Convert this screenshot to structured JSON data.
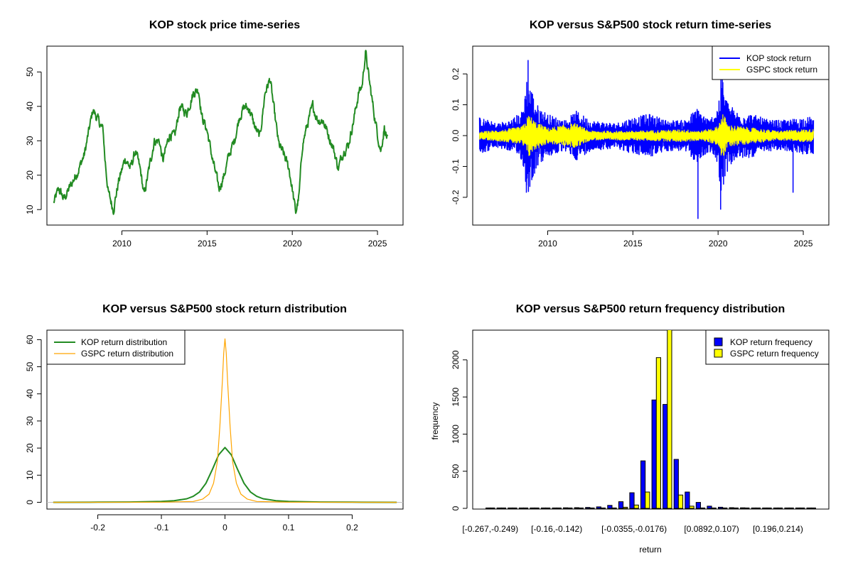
{
  "chart_data": [
    {
      "id": "price",
      "type": "line",
      "title": "KOP stock price time-series",
      "xlabel": "",
      "ylabel": "",
      "xlim": [
        2005.6,
        2026.5
      ],
      "ylim": [
        5.5,
        57.5
      ],
      "x_ticks": [
        2010,
        2015,
        2020,
        2025
      ],
      "y_ticks": [
        10,
        20,
        30,
        40,
        50
      ],
      "series": [
        {
          "color": "#228B22",
          "x": [
            2006.0,
            2006.3,
            2006.6,
            2007.0,
            2007.4,
            2007.8,
            2008.3,
            2008.6,
            2008.9,
            2009.0,
            2009.2,
            2009.5,
            2009.8,
            2010.2,
            2010.5,
            2010.8,
            2011.1,
            2011.3,
            2011.6,
            2011.9,
            2012.2,
            2012.4,
            2012.8,
            2013.1,
            2013.4,
            2013.8,
            2014.2,
            2014.5,
            2014.7,
            2015.0,
            2015.3,
            2015.7,
            2016.0,
            2016.3,
            2016.6,
            2016.9,
            2017.2,
            2017.5,
            2017.8,
            2018.1,
            2018.4,
            2018.7,
            2018.9,
            2019.2,
            2019.5,
            2019.8,
            2020.0,
            2020.2,
            2020.4,
            2020.6,
            2020.9,
            2021.2,
            2021.5,
            2021.8,
            2022.1,
            2022.4,
            2022.7,
            2023.0,
            2023.3,
            2023.6,
            2023.9,
            2024.1,
            2024.3,
            2024.5,
            2024.8,
            2025.0,
            2025.2,
            2025.4,
            2025.6
          ],
          "y": [
            12,
            16,
            13,
            17,
            21,
            26,
            39,
            36,
            33,
            25,
            15,
            10,
            18,
            25,
            22,
            27,
            21,
            14,
            22,
            30,
            30,
            24,
            32,
            31,
            40,
            38,
            44,
            45,
            37,
            33,
            25,
            16,
            20,
            26,
            30,
            37,
            40,
            39,
            34,
            31,
            44,
            48,
            40,
            29,
            26,
            22,
            16,
            9,
            14,
            29,
            35,
            40,
            36,
            36,
            32,
            28,
            22,
            27,
            29,
            36,
            44,
            46,
            56,
            48,
            38,
            32,
            27,
            34,
            30
          ]
        }
      ]
    },
    {
      "id": "returns",
      "type": "line",
      "title": "KOP versus S&P500 stock return time-series",
      "xlabel": "",
      "ylabel": "",
      "xlim": [
        2005.6,
        2026.5
      ],
      "ylim": [
        -0.29,
        0.29
      ],
      "x_ticks": [
        2010,
        2015,
        2020,
        2025
      ],
      "y_ticks": [
        -0.2,
        -0.1,
        0.0,
        0.1,
        0.2
      ],
      "y_tick_labels": [
        "-0.2",
        "-0.1",
        "0.0",
        "0.1",
        "0.2"
      ],
      "legend": {
        "position": "top-right",
        "entries": [
          "KOP stock return",
          "GSPC stock return"
        ]
      },
      "series": [
        {
          "name": "KOP stock return",
          "color": "#0000FF",
          "x_start": 2006.0,
          "x_end": 2025.6,
          "envelope_x": [
            2006.0,
            2007.0,
            2007.8,
            2008.5,
            2008.8,
            2009.0,
            2009.4,
            2010.0,
            2011.0,
            2011.7,
            2012.5,
            2014.0,
            2015.0,
            2016.0,
            2017.0,
            2018.0,
            2018.8,
            2019.5,
            2020.0,
            2020.2,
            2020.5,
            2021.0,
            2022.0,
            2023.0,
            2024.0,
            2025.0,
            2025.6
          ],
          "envelope_amp": [
            0.06,
            0.04,
            0.05,
            0.08,
            0.2,
            0.16,
            0.1,
            0.07,
            0.05,
            0.08,
            0.05,
            0.04,
            0.06,
            0.07,
            0.05,
            0.05,
            0.09,
            0.05,
            0.1,
            0.2,
            0.12,
            0.08,
            0.07,
            0.05,
            0.05,
            0.06,
            0.06
          ],
          "extremes": [
            {
              "x": 2008.85,
              "y": 0.245
            },
            {
              "x": 2008.75,
              "y": -0.185
            },
            {
              "x": 2018.82,
              "y": -0.27
            },
            {
              "x": 2020.15,
              "y": -0.24
            },
            {
              "x": 2020.25,
              "y": 0.21
            },
            {
              "x": 2024.4,
              "y": -0.185
            }
          ]
        },
        {
          "name": "GSPC stock return",
          "color": "#FFFF00",
          "x_start": 2006.0,
          "x_end": 2025.6,
          "envelope_x": [
            2006.0,
            2007.5,
            2008.5,
            2008.9,
            2009.3,
            2010.0,
            2011.6,
            2012.5,
            2015.0,
            2018.0,
            2019.0,
            2020.0,
            2020.25,
            2020.6,
            2022.0,
            2023.5,
            2025.0,
            2025.6
          ],
          "envelope_amp": [
            0.012,
            0.02,
            0.03,
            0.07,
            0.045,
            0.025,
            0.04,
            0.015,
            0.015,
            0.02,
            0.015,
            0.03,
            0.08,
            0.035,
            0.025,
            0.015,
            0.02,
            0.02
          ]
        }
      ]
    },
    {
      "id": "density",
      "type": "line",
      "title": "KOP versus S&P500 stock return distribution",
      "xlabel": "",
      "ylabel": "",
      "xlim": [
        -0.28,
        0.28
      ],
      "ylim": [
        -2.5,
        63.5
      ],
      "x_ticks": [
        -0.2,
        -0.1,
        0.0,
        0.1,
        0.2
      ],
      "y_ticks": [
        0,
        10,
        20,
        30,
        40,
        50,
        60
      ],
      "legend": {
        "position": "top-left",
        "entries": [
          "KOP return distribution",
          "GSPC return distribution"
        ]
      },
      "series": [
        {
          "name": "KOP return distribution",
          "color": "#228B22",
          "x": [
            -0.27,
            -0.2,
            -0.15,
            -0.1,
            -0.08,
            -0.06,
            -0.05,
            -0.04,
            -0.03,
            -0.02,
            -0.01,
            0.0,
            0.01,
            0.02,
            0.03,
            0.04,
            0.05,
            0.06,
            0.08,
            0.1,
            0.15,
            0.2,
            0.27
          ],
          "y": [
            0,
            0.05,
            0.1,
            0.3,
            0.6,
            1.3,
            2.2,
            3.8,
            7.0,
            12.0,
            17.5,
            20.2,
            17.5,
            12.0,
            7.0,
            3.8,
            2.2,
            1.3,
            0.6,
            0.3,
            0.1,
            0.05,
            0
          ]
        },
        {
          "name": "GSPC return distribution",
          "color": "#FFA500",
          "x": [
            -0.27,
            -0.1,
            -0.05,
            -0.035,
            -0.025,
            -0.018,
            -0.012,
            -0.008,
            -0.004,
            -0.002,
            0.0,
            0.002,
            0.004,
            0.008,
            0.012,
            0.018,
            0.025,
            0.035,
            0.05,
            0.1,
            0.27
          ],
          "y": [
            0,
            0.05,
            0.3,
            1.2,
            3.0,
            7.0,
            15.0,
            28.0,
            45.0,
            55.0,
            60.3,
            55.0,
            45.0,
            28.0,
            15.0,
            7.0,
            3.0,
            1.2,
            0.3,
            0.05,
            0
          ]
        }
      ]
    },
    {
      "id": "histogram",
      "type": "bar",
      "title": "KOP versus S&P500 return frequency distribution",
      "xlabel": "return",
      "ylabel": "frequency",
      "ylim": [
        0,
        2400
      ],
      "y_ticks": [
        0,
        500,
        1000,
        1500,
        2000
      ],
      "x_tick_labels": [
        "[-0.267,-0.249)",
        "[-0.16,-0.142)",
        "[-0.0355,-0.0176)",
        "[0.0892,0.107)",
        "[0.196,0.214)"
      ],
      "x_tick_bins": [
        0,
        6,
        13,
        20,
        26
      ],
      "bins": 30,
      "legend": {
        "position": "top-right",
        "entries": [
          "KOP return frequency",
          "GSPC return frequency"
        ]
      },
      "series": [
        {
          "name": "KOP return frequency",
          "color": "#0000FF",
          "values": [
            1,
            1,
            1,
            1,
            1,
            2,
            5,
            8,
            10,
            12,
            20,
            40,
            90,
            210,
            640,
            1460,
            1400,
            660,
            220,
            80,
            30,
            15,
            10,
            8,
            5,
            3,
            3,
            2,
            1,
            1
          ]
        },
        {
          "name": "GSPC return frequency",
          "color": "#FFFF00",
          "values": [
            0,
            0,
            0,
            0,
            0,
            0,
            0,
            0,
            0,
            0,
            1,
            3,
            15,
            45,
            220,
            2030,
            2450,
            180,
            30,
            5,
            2,
            1,
            0,
            0,
            0,
            0,
            0,
            0,
            0,
            0
          ]
        }
      ]
    }
  ]
}
